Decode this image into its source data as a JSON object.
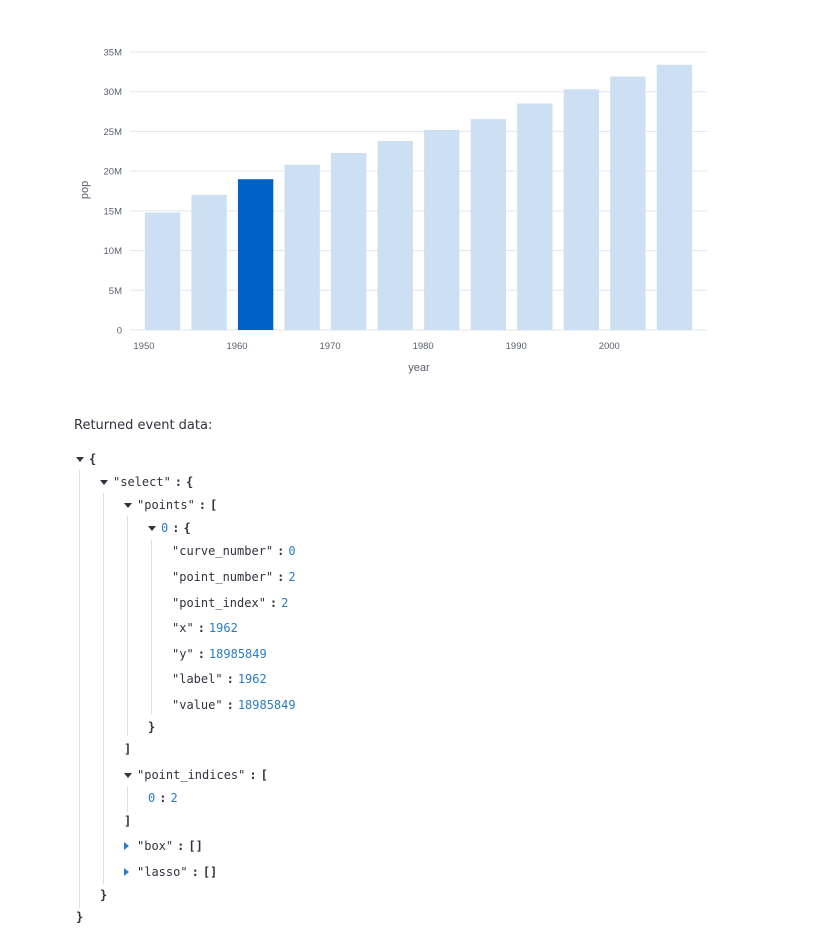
{
  "chart_data": {
    "type": "bar",
    "x": [
      1952,
      1957,
      1962,
      1967,
      1972,
      1977,
      1982,
      1987,
      1992,
      1997,
      2002,
      2007
    ],
    "values": [
      14785584,
      17010154,
      18985849,
      20819767,
      22284500,
      23796400,
      25201900,
      26549700,
      28523502,
      30305843,
      31902268,
      33390141
    ],
    "selected_index": 2,
    "xlabel": "year",
    "ylabel": "pop",
    "x_ticks": [
      "1950",
      "1960",
      "1970",
      "1980",
      "1990",
      "2000"
    ],
    "y_ticks": [
      "0",
      "5M",
      "10M",
      "15M",
      "20M",
      "25M",
      "30M",
      "35M"
    ],
    "ylim": [
      0,
      35000000
    ],
    "colors": {
      "selected": "#0062c4",
      "unselected": "#cde0f3"
    },
    "grid": true
  },
  "event_label": "Returned event data:",
  "json_lines": [
    {
      "depth": 0,
      "toggle": "open",
      "key": "",
      "sep": "",
      "value": "{",
      "vtype": "punc"
    },
    {
      "depth": 1,
      "toggle": "open",
      "key": "\"select\"",
      "sep": ":",
      "value": "{",
      "vtype": "punc"
    },
    {
      "depth": 2,
      "toggle": "open",
      "key": "\"points\"",
      "sep": ":",
      "value": "[",
      "vtype": "punc"
    },
    {
      "depth": 3,
      "toggle": "open",
      "key": "0",
      "sep": ":",
      "value": "{",
      "vtype": "punc",
      "index": true
    },
    {
      "depth": 4,
      "toggle": "",
      "key": "\"curve_number\"",
      "sep": ":",
      "value": "0",
      "vtype": "num"
    },
    {
      "depth": 4,
      "toggle": "",
      "key": "\"point_number\"",
      "sep": ":",
      "value": "2",
      "vtype": "num"
    },
    {
      "depth": 4,
      "toggle": "",
      "key": "\"point_index\"",
      "sep": ":",
      "value": "2",
      "vtype": "num"
    },
    {
      "depth": 4,
      "toggle": "",
      "key": "\"x\"",
      "sep": ":",
      "value": "1962",
      "vtype": "num"
    },
    {
      "depth": 4,
      "toggle": "",
      "key": "\"y\"",
      "sep": ":",
      "value": "18985849",
      "vtype": "num"
    },
    {
      "depth": 4,
      "toggle": "",
      "key": "\"label\"",
      "sep": ":",
      "value": "1962",
      "vtype": "num"
    },
    {
      "depth": 4,
      "toggle": "",
      "key": "\"value\"",
      "sep": ":",
      "value": "18985849",
      "vtype": "num"
    },
    {
      "depth": 3,
      "toggle": "",
      "key": "",
      "sep": "",
      "value": "}",
      "vtype": "punc"
    },
    {
      "depth": 2,
      "toggle": "",
      "key": "",
      "sep": "",
      "value": "]",
      "vtype": "punc"
    },
    {
      "depth": 2,
      "toggle": "open",
      "key": "\"point_indices\"",
      "sep": ":",
      "value": "[",
      "vtype": "punc"
    },
    {
      "depth": 3,
      "toggle": "",
      "key": "0",
      "sep": ":",
      "value": "2",
      "vtype": "num",
      "index": true
    },
    {
      "depth": 2,
      "toggle": "",
      "key": "",
      "sep": "",
      "value": "]",
      "vtype": "punc"
    },
    {
      "depth": 2,
      "toggle": "closed",
      "key": "\"box\"",
      "sep": ":",
      "value": "[]",
      "vtype": "punc"
    },
    {
      "depth": 2,
      "toggle": "closed",
      "key": "\"lasso\"",
      "sep": ":",
      "value": "[]",
      "vtype": "punc"
    },
    {
      "depth": 1,
      "toggle": "",
      "key": "",
      "sep": "",
      "value": "}",
      "vtype": "punc"
    },
    {
      "depth": 0,
      "toggle": "",
      "key": "",
      "sep": "",
      "value": "}",
      "vtype": "punc"
    }
  ]
}
